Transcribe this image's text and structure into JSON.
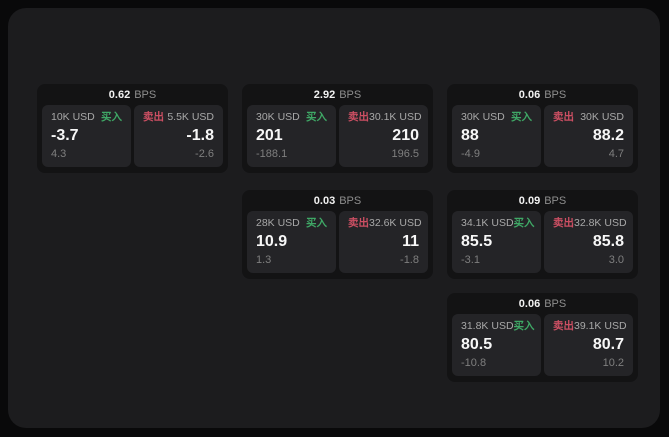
{
  "labels": {
    "buy": "买入",
    "sell": "卖出",
    "bps_unit": "BPS"
  },
  "colors": {
    "buy_green": "#3fa866",
    "sell_red": "#cc4f63",
    "surface": "#1c1c1e",
    "card": "#131314",
    "panel": "#242427"
  },
  "cards": [
    {
      "bps": "0.62",
      "row": 0,
      "col": 0,
      "buy": {
        "amount": "10K USD",
        "value": "-3.7",
        "sub": "4.3"
      },
      "sell": {
        "amount": "5.5K USD",
        "value": "-1.8",
        "sub": "-2.6"
      }
    },
    {
      "bps": "2.92",
      "row": 0,
      "col": 1,
      "buy": {
        "amount": "30K USD",
        "value": "201",
        "sub": "-188.1"
      },
      "sell": {
        "amount": "30.1K USD",
        "value": "210",
        "sub": "196.5"
      }
    },
    {
      "bps": "0.06",
      "row": 0,
      "col": 2,
      "buy": {
        "amount": "30K USD",
        "value": "88",
        "sub": "-4.9"
      },
      "sell": {
        "amount": "30K USD",
        "value": "88.2",
        "sub": "4.7"
      }
    },
    {
      "bps": "0.03",
      "row": 1,
      "col": 1,
      "buy": {
        "amount": "28K USD",
        "value": "10.9",
        "sub": "1.3"
      },
      "sell": {
        "amount": "32.6K USD",
        "value": "11",
        "sub": "-1.8"
      }
    },
    {
      "bps": "0.09",
      "row": 1,
      "col": 2,
      "buy": {
        "amount": "34.1K USD",
        "value": "85.5",
        "sub": "-3.1"
      },
      "sell": {
        "amount": "32.8K USD",
        "value": "85.8",
        "sub": "3.0"
      }
    },
    {
      "bps": "0.06",
      "row": 2,
      "col": 2,
      "buy": {
        "amount": "31.8K USD",
        "value": "80.5",
        "sub": "-10.8"
      },
      "sell": {
        "amount": "39.1K USD",
        "value": "80.7",
        "sub": "10.2"
      }
    }
  ]
}
